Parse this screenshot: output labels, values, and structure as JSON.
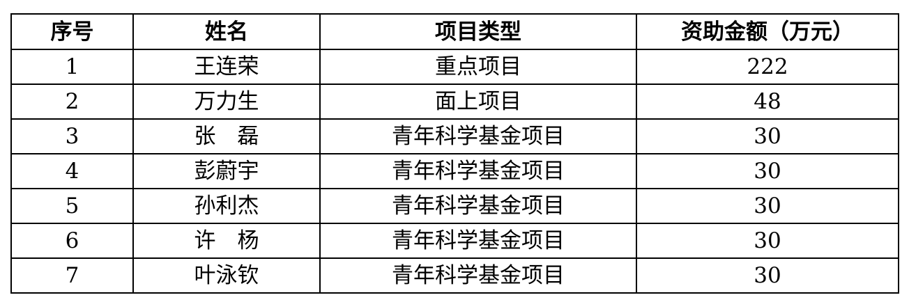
{
  "table": {
    "headers": [
      "序号",
      "姓名",
      "项目类型",
      "资助金额（万元）"
    ],
    "rows": [
      [
        "1",
        "王连荣",
        "重点项目",
        "222"
      ],
      [
        "2",
        "万力生",
        "面上项目",
        "48"
      ],
      [
        "3",
        "张　磊",
        "青年科学基金项目",
        "30"
      ],
      [
        "4",
        "彭蔚宇",
        "青年科学基金项目",
        "30"
      ],
      [
        "5",
        "孙利杰",
        "青年科学基金项目",
        "30"
      ],
      [
        "6",
        "许　杨",
        "青年科学基金项目",
        "30"
      ],
      [
        "7",
        "叶泳钦",
        "青年科学基金项目",
        "30"
      ]
    ]
  }
}
